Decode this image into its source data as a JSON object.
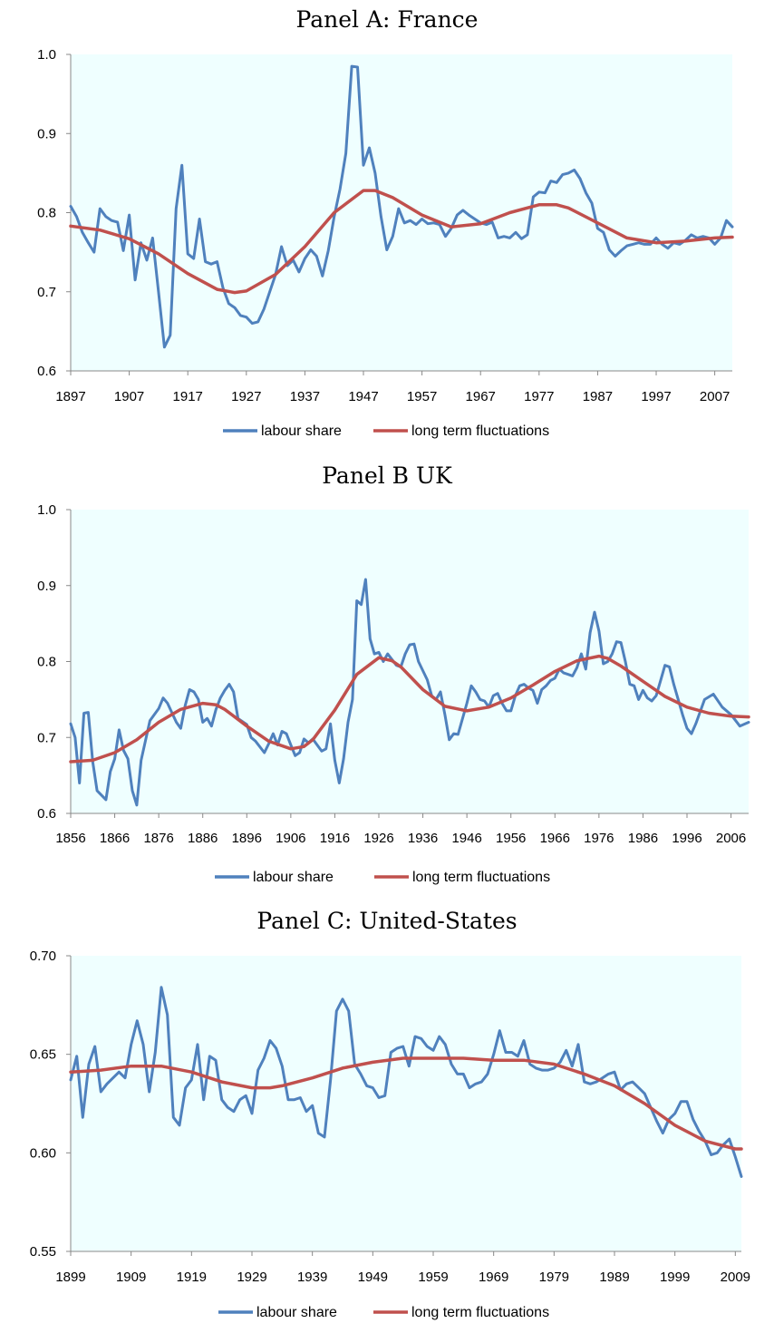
{
  "colors": {
    "plot_background": "#efffff",
    "labour_share": "#4f81bd",
    "long_term": "#c0504d",
    "axis": "#888888"
  },
  "chart_data": [
    {
      "type": "line",
      "title": "Panel A: France",
      "ylim": [
        0.6,
        1.0
      ],
      "y_ticks": [
        "0.6",
        "0.7",
        "0.8",
        "0.9",
        "1.0"
      ],
      "x_range": [
        1897,
        2010
      ],
      "x_ticks": [
        "1897",
        "1907",
        "1917",
        "1927",
        "1937",
        "1947",
        "1957",
        "1967",
        "1977",
        "1987",
        "1997",
        "2007"
      ],
      "legend": "bottom",
      "grid": false,
      "series": [
        {
          "name": "labour share",
          "x": [
            1897,
            1898,
            1899,
            1900,
            1901,
            1902,
            1903,
            1904,
            1905,
            1906,
            1907,
            1908,
            1909,
            1910,
            1911,
            1912,
            1913,
            1914,
            1915,
            1916,
            1917,
            1918,
            1919,
            1920,
            1921,
            1922,
            1923,
            1924,
            1925,
            1926,
            1927,
            1928,
            1929,
            1930,
            1931,
            1932,
            1933,
            1934,
            1935,
            1936,
            1937,
            1938,
            1939,
            1940,
            1941,
            1942,
            1943,
            1944,
            1945,
            1946,
            1947,
            1948,
            1949,
            1950,
            1951,
            1952,
            1953,
            1954,
            1955,
            1956,
            1957,
            1958,
            1959,
            1960,
            1961,
            1962,
            1963,
            1964,
            1965,
            1966,
            1967,
            1968,
            1969,
            1970,
            1971,
            1972,
            1973,
            1974,
            1975,
            1976,
            1977,
            1978,
            1979,
            1980,
            1981,
            1982,
            1983,
            1984,
            1985,
            1986,
            1987,
            1988,
            1989,
            1990,
            1991,
            1992,
            1993,
            1994,
            1995,
            1996,
            1997,
            1998,
            1999,
            2000,
            2001,
            2002,
            2003,
            2004,
            2005,
            2006,
            2007,
            2008,
            2009,
            2010
          ],
          "values": [
            0.808,
            0.795,
            0.775,
            0.762,
            0.75,
            0.805,
            0.795,
            0.79,
            0.788,
            0.752,
            0.797,
            0.715,
            0.762,
            0.74,
            0.768,
            0.7,
            0.63,
            0.645,
            0.805,
            0.86,
            0.748,
            0.742,
            0.792,
            0.738,
            0.735,
            0.738,
            0.705,
            0.685,
            0.68,
            0.67,
            0.668,
            0.66,
            0.662,
            0.678,
            0.7,
            0.722,
            0.757,
            0.733,
            0.74,
            0.725,
            0.742,
            0.753,
            0.745,
            0.72,
            0.752,
            0.795,
            0.83,
            0.875,
            0.985,
            0.984,
            0.86,
            0.882,
            0.85,
            0.795,
            0.753,
            0.77,
            0.805,
            0.787,
            0.79,
            0.785,
            0.792,
            0.786,
            0.787,
            0.785,
            0.77,
            0.78,
            0.797,
            0.803,
            0.797,
            0.792,
            0.787,
            0.785,
            0.788,
            0.768,
            0.77,
            0.768,
            0.775,
            0.767,
            0.772,
            0.82,
            0.826,
            0.825,
            0.84,
            0.838,
            0.848,
            0.85,
            0.854,
            0.843,
            0.825,
            0.812,
            0.78,
            0.775,
            0.753,
            0.745,
            0.752,
            0.758,
            0.76,
            0.762,
            0.76,
            0.76,
            0.768,
            0.76,
            0.755,
            0.762,
            0.76,
            0.765,
            0.772,
            0.768,
            0.77,
            0.768,
            0.76,
            0.768,
            0.79,
            0.782
          ]
        },
        {
          "name": "long term fluctuations",
          "x": [
            1897,
            1902,
            1907,
            1912,
            1917,
            1922,
            1925,
            1927,
            1932,
            1937,
            1942,
            1947,
            1949,
            1952,
            1957,
            1962,
            1967,
            1972,
            1977,
            1980,
            1982,
            1987,
            1992,
            1997,
            2002,
            2007,
            2010
          ],
          "values": [
            0.783,
            0.778,
            0.767,
            0.748,
            0.723,
            0.703,
            0.699,
            0.701,
            0.722,
            0.757,
            0.8,
            0.828,
            0.828,
            0.819,
            0.797,
            0.782,
            0.786,
            0.8,
            0.81,
            0.81,
            0.806,
            0.787,
            0.768,
            0.762,
            0.764,
            0.768,
            0.769
          ]
        }
      ]
    },
    {
      "type": "line",
      "title": "Panel B UK",
      "ylim": [
        0.6,
        1.0
      ],
      "y_ticks": [
        "0.6",
        "0.7",
        "0.8",
        "0.9",
        "1.0"
      ],
      "x_range": [
        1856,
        2010
      ],
      "x_ticks": [
        "1856",
        "1866",
        "1876",
        "1886",
        "1896",
        "1906",
        "1916",
        "1926",
        "1936",
        "1946",
        "1956",
        "1966",
        "1976",
        "1986",
        "1996",
        "2006"
      ],
      "legend": "bottom",
      "grid": false,
      "series": [
        {
          "name": "labour share",
          "x": [
            1856,
            1857,
            1858,
            1859,
            1860,
            1861,
            1862,
            1864,
            1865,
            1866,
            1867,
            1868,
            1869,
            1870,
            1871,
            1872,
            1874,
            1876,
            1877,
            1878,
            1880,
            1881,
            1882,
            1883,
            1884,
            1885,
            1886,
            1887,
            1888,
            1889,
            1890,
            1891,
            1892,
            1893,
            1894,
            1896,
            1897,
            1898,
            1900,
            1901,
            1902,
            1903,
            1904,
            1905,
            1906,
            1907,
            1908,
            1909,
            1910,
            1911,
            1912,
            1913,
            1914,
            1915,
            1916,
            1917,
            1918,
            1919,
            1920,
            1921,
            1922,
            1923,
            1924,
            1925,
            1926,
            1927,
            1928,
            1930,
            1931,
            1932,
            1933,
            1934,
            1935,
            1937,
            1938,
            1939,
            1940,
            1941,
            1942,
            1943,
            1944,
            1946,
            1947,
            1948,
            1949,
            1950,
            1951,
            1952,
            1953,
            1954,
            1955,
            1956,
            1957,
            1958,
            1959,
            1960,
            1961,
            1962,
            1963,
            1964,
            1965,
            1966,
            1967,
            1968,
            1969,
            1970,
            1971,
            1972,
            1973,
            1974,
            1975,
            1976,
            1977,
            1978,
            1979,
            1980,
            1981,
            1982,
            1983,
            1984,
            1985,
            1986,
            1987,
            1988,
            1989,
            1990,
            1991,
            1992,
            1993,
            1994,
            1995,
            1996,
            1997,
            1998,
            2000,
            2002,
            2004,
            2006,
            2008,
            2010
          ],
          "values": [
            0.718,
            0.7,
            0.64,
            0.732,
            0.733,
            0.668,
            0.63,
            0.618,
            0.655,
            0.672,
            0.71,
            0.683,
            0.672,
            0.63,
            0.611,
            0.67,
            0.722,
            0.738,
            0.752,
            0.745,
            0.72,
            0.712,
            0.742,
            0.763,
            0.76,
            0.75,
            0.72,
            0.725,
            0.715,
            0.737,
            0.752,
            0.762,
            0.77,
            0.76,
            0.725,
            0.717,
            0.7,
            0.695,
            0.68,
            0.692,
            0.705,
            0.69,
            0.708,
            0.705,
            0.69,
            0.676,
            0.68,
            0.698,
            0.693,
            0.698,
            0.69,
            0.682,
            0.685,
            0.718,
            0.67,
            0.64,
            0.672,
            0.72,
            0.75,
            0.88,
            0.875,
            0.908,
            0.83,
            0.81,
            0.812,
            0.8,
            0.81,
            0.795,
            0.793,
            0.81,
            0.822,
            0.823,
            0.8,
            0.776,
            0.755,
            0.75,
            0.76,
            0.73,
            0.697,
            0.705,
            0.704,
            0.745,
            0.768,
            0.76,
            0.75,
            0.748,
            0.74,
            0.755,
            0.758,
            0.745,
            0.735,
            0.735,
            0.755,
            0.768,
            0.77,
            0.765,
            0.762,
            0.745,
            0.763,
            0.768,
            0.775,
            0.778,
            0.79,
            0.785,
            0.783,
            0.781,
            0.792,
            0.81,
            0.79,
            0.838,
            0.865,
            0.84,
            0.797,
            0.8,
            0.81,
            0.826,
            0.825,
            0.8,
            0.77,
            0.768,
            0.75,
            0.762,
            0.752,
            0.748,
            0.755,
            0.775,
            0.795,
            0.793,
            0.77,
            0.75,
            0.73,
            0.712,
            0.705,
            0.718,
            0.75,
            0.757,
            0.74,
            0.73,
            0.715,
            0.72
          ]
        },
        {
          "name": "long term fluctuations",
          "x": [
            1856,
            1861,
            1866,
            1871,
            1876,
            1881,
            1886,
            1889,
            1891,
            1896,
            1901,
            1906,
            1909,
            1911,
            1916,
            1921,
            1926,
            1929,
            1931,
            1936,
            1941,
            1946,
            1951,
            1956,
            1961,
            1966,
            1971,
            1976,
            1978,
            1981,
            1986,
            1991,
            1996,
            2001,
            2006,
            2010
          ],
          "values": [
            0.668,
            0.67,
            0.68,
            0.697,
            0.72,
            0.737,
            0.745,
            0.743,
            0.737,
            0.715,
            0.695,
            0.685,
            0.688,
            0.697,
            0.736,
            0.783,
            0.805,
            0.801,
            0.793,
            0.763,
            0.741,
            0.735,
            0.74,
            0.752,
            0.769,
            0.787,
            0.801,
            0.807,
            0.804,
            0.794,
            0.774,
            0.754,
            0.74,
            0.732,
            0.728,
            0.727
          ]
        }
      ]
    },
    {
      "type": "line",
      "title": "Panel C: United-States",
      "ylim": [
        0.55,
        0.7
      ],
      "y_ticks": [
        "0.55",
        "0.60",
        "0.65",
        "0.70"
      ],
      "x_range": [
        1899,
        2010
      ],
      "x_ticks": [
        "1899",
        "1909",
        "1919",
        "1929",
        "1939",
        "1949",
        "1959",
        "1969",
        "1979",
        "1989",
        "1999",
        "2009"
      ],
      "legend": "bottom",
      "grid": false,
      "series": [
        {
          "name": "labour share",
          "x": [
            1899,
            1900,
            1901,
            1902,
            1903,
            1904,
            1905,
            1906,
            1907,
            1908,
            1909,
            1910,
            1911,
            1912,
            1913,
            1914,
            1915,
            1916,
            1917,
            1918,
            1919,
            1920,
            1921,
            1922,
            1923,
            1924,
            1925,
            1926,
            1927,
            1928,
            1929,
            1930,
            1931,
            1932,
            1933,
            1934,
            1935,
            1936,
            1937,
            1938,
            1939,
            1940,
            1941,
            1942,
            1943,
            1944,
            1945,
            1946,
            1947,
            1948,
            1949,
            1950,
            1951,
            1952,
            1953,
            1954,
            1955,
            1956,
            1957,
            1958,
            1959,
            1960,
            1961,
            1962,
            1963,
            1964,
            1965,
            1966,
            1967,
            1968,
            1969,
            1970,
            1971,
            1972,
            1973,
            1974,
            1975,
            1976,
            1977,
            1978,
            1979,
            1980,
            1981,
            1982,
            1983,
            1984,
            1985,
            1986,
            1987,
            1988,
            1989,
            1990,
            1991,
            1992,
            1993,
            1994,
            1995,
            1996,
            1997,
            1998,
            1999,
            2000,
            2001,
            2002,
            2003,
            2004,
            2005,
            2006,
            2007,
            2008,
            2009,
            2010
          ],
          "values": [
            0.637,
            0.649,
            0.618,
            0.645,
            0.654,
            0.631,
            0.635,
            0.638,
            0.641,
            0.638,
            0.655,
            0.667,
            0.655,
            0.631,
            0.651,
            0.684,
            0.67,
            0.618,
            0.614,
            0.633,
            0.637,
            0.655,
            0.627,
            0.649,
            0.647,
            0.627,
            0.623,
            0.621,
            0.627,
            0.629,
            0.62,
            0.642,
            0.648,
            0.657,
            0.653,
            0.644,
            0.627,
            0.627,
            0.628,
            0.621,
            0.624,
            0.61,
            0.608,
            0.637,
            0.672,
            0.678,
            0.672,
            0.645,
            0.64,
            0.634,
            0.633,
            0.628,
            0.629,
            0.651,
            0.653,
            0.654,
            0.644,
            0.659,
            0.658,
            0.654,
            0.652,
            0.659,
            0.655,
            0.645,
            0.64,
            0.64,
            0.633,
            0.635,
            0.636,
            0.64,
            0.65,
            0.662,
            0.651,
            0.651,
            0.649,
            0.657,
            0.645,
            0.643,
            0.642,
            0.642,
            0.643,
            0.646,
            0.652,
            0.644,
            0.655,
            0.636,
            0.635,
            0.636,
            0.638,
            0.64,
            0.641,
            0.632,
            0.635,
            0.636,
            0.633,
            0.63,
            0.623,
            0.616,
            0.61,
            0.617,
            0.62,
            0.626,
            0.626,
            0.617,
            0.611,
            0.606,
            0.599,
            0.6,
            0.604,
            0.607,
            0.598,
            0.588
          ]
        },
        {
          "name": "long term fluctuations",
          "x": [
            1899,
            1904,
            1909,
            1914,
            1919,
            1924,
            1929,
            1932,
            1934,
            1939,
            1944,
            1949,
            1954,
            1959,
            1964,
            1969,
            1974,
            1979,
            1984,
            1989,
            1994,
            1999,
            2004,
            2009,
            2010
          ],
          "values": [
            0.641,
            0.642,
            0.644,
            0.644,
            0.641,
            0.636,
            0.633,
            0.633,
            0.634,
            0.638,
            0.643,
            0.646,
            0.648,
            0.648,
            0.648,
            0.647,
            0.647,
            0.645,
            0.64,
            0.634,
            0.625,
            0.614,
            0.606,
            0.602,
            0.602
          ]
        }
      ]
    }
  ]
}
